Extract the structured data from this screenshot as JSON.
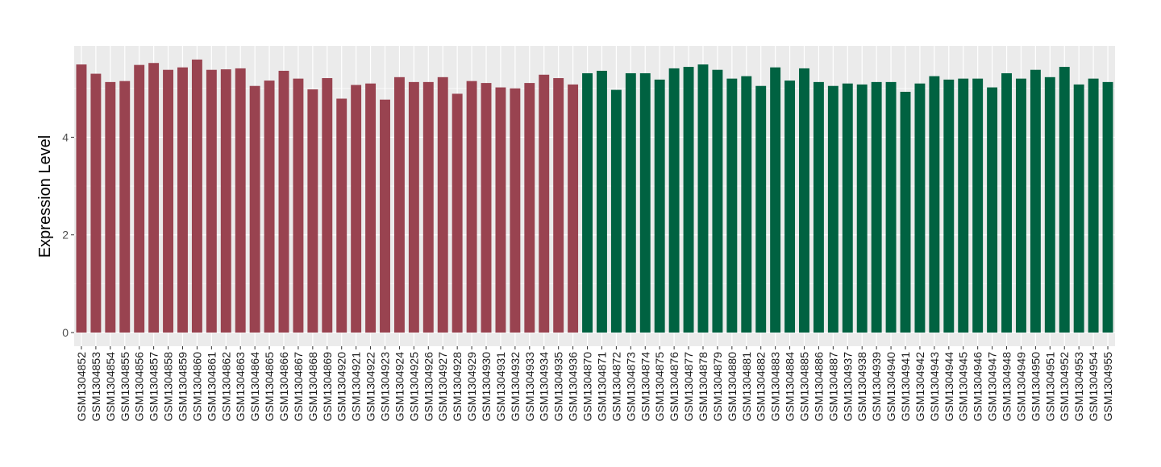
{
  "chart_data": {
    "type": "bar",
    "title": "",
    "xlabel": "",
    "ylabel": "Expression Level",
    "ylim": [
      -0.28,
      5.87
    ],
    "yticks": [
      0,
      2,
      4
    ],
    "grid": true,
    "legend": "none",
    "colors": {
      "group1": "#994350",
      "group2": "#006241",
      "panel": "#EBEBEB",
      "grid": "#FFFFFF"
    },
    "categories": [
      "GSM1304852",
      "GSM1304853",
      "GSM1304854",
      "GSM1304855",
      "GSM1304856",
      "GSM1304857",
      "GSM1304858",
      "GSM1304859",
      "GSM1304860",
      "GSM1304861",
      "GSM1304862",
      "GSM1304863",
      "GSM1304864",
      "GSM1304865",
      "GSM1304866",
      "GSM1304867",
      "GSM1304868",
      "GSM1304869",
      "GSM1304920",
      "GSM1304921",
      "GSM1304922",
      "GSM1304923",
      "GSM1304924",
      "GSM1304925",
      "GSM1304926",
      "GSM1304927",
      "GSM1304928",
      "GSM1304929",
      "GSM1304930",
      "GSM1304931",
      "GSM1304932",
      "GSM1304933",
      "GSM1304934",
      "GSM1304935",
      "GSM1304936",
      "GSM1304870",
      "GSM1304871",
      "GSM1304872",
      "GSM1304873",
      "GSM1304874",
      "GSM1304875",
      "GSM1304876",
      "GSM1304877",
      "GSM1304878",
      "GSM1304879",
      "GSM1304880",
      "GSM1304881",
      "GSM1304882",
      "GSM1304883",
      "GSM1304884",
      "GSM1304885",
      "GSM1304886",
      "GSM1304887",
      "GSM1304937",
      "GSM1304938",
      "GSM1304939",
      "GSM1304940",
      "GSM1304941",
      "GSM1304942",
      "GSM1304943",
      "GSM1304944",
      "GSM1304945",
      "GSM1304946",
      "GSM1304947",
      "GSM1304948",
      "GSM1304949",
      "GSM1304950",
      "GSM1304951",
      "GSM1304952",
      "GSM1304953",
      "GSM1304954",
      "GSM1304955"
    ],
    "values": [
      5.49,
      5.3,
      5.13,
      5.15,
      5.48,
      5.52,
      5.38,
      5.43,
      5.59,
      5.38,
      5.39,
      5.41,
      5.05,
      5.16,
      5.36,
      5.2,
      4.98,
      5.21,
      4.79,
      5.07,
      5.1,
      4.77,
      5.23,
      5.13,
      5.13,
      5.23,
      4.89,
      5.15,
      5.11,
      5.02,
      5.0,
      5.11,
      5.28,
      5.21,
      5.08,
      5.31,
      5.36,
      4.97,
      5.31,
      5.31,
      5.18,
      5.41,
      5.44,
      5.49,
      5.38,
      5.2,
      5.25,
      5.05,
      5.43,
      5.16,
      5.41,
      5.13,
      5.05,
      5.1,
      5.08,
      5.13,
      5.13,
      4.93,
      5.1,
      5.25,
      5.18,
      5.2,
      5.2,
      5.02,
      5.31,
      5.2,
      5.38,
      5.23,
      5.44,
      5.08,
      5.2,
      5.13
    ],
    "groups": [
      "group1",
      "group1",
      "group1",
      "group1",
      "group1",
      "group1",
      "group1",
      "group1",
      "group1",
      "group1",
      "group1",
      "group1",
      "group1",
      "group1",
      "group1",
      "group1",
      "group1",
      "group1",
      "group1",
      "group1",
      "group1",
      "group1",
      "group1",
      "group1",
      "group1",
      "group1",
      "group1",
      "group1",
      "group1",
      "group1",
      "group1",
      "group1",
      "group1",
      "group1",
      "group1",
      "group2",
      "group2",
      "group2",
      "group2",
      "group2",
      "group2",
      "group2",
      "group2",
      "group2",
      "group2",
      "group2",
      "group2",
      "group2",
      "group2",
      "group2",
      "group2",
      "group2",
      "group2",
      "group2",
      "group2",
      "group2",
      "group2",
      "group2",
      "group2",
      "group2",
      "group2",
      "group2",
      "group2",
      "group2",
      "group2",
      "group2",
      "group2",
      "group2",
      "group2",
      "group2",
      "group2",
      "group2"
    ]
  }
}
